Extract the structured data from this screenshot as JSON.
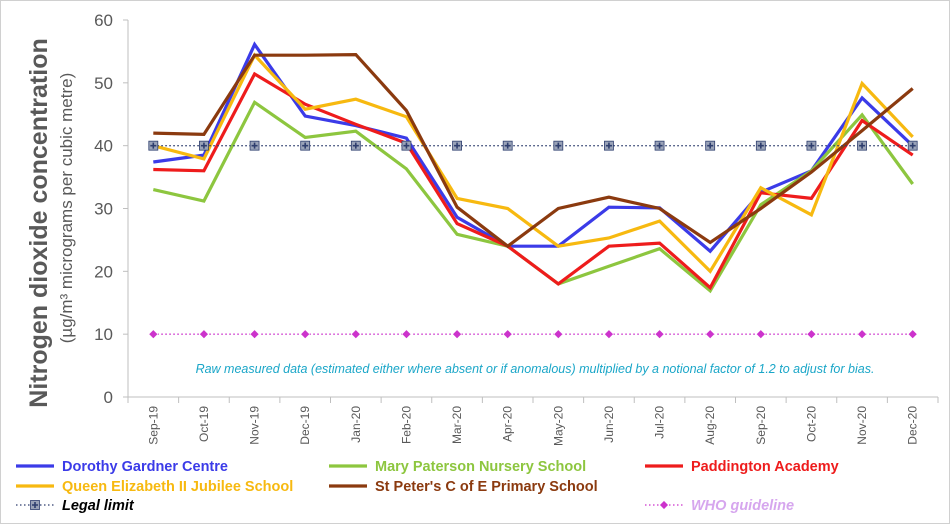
{
  "chart_data": {
    "type": "line",
    "ylabel_main": "Nitrogen dioxide concentration",
    "ylabel_sub": "(µg/m³ micrograms per cubic metre)",
    "ylim": [
      0,
      60
    ],
    "yticks": [
      0,
      10,
      20,
      30,
      40,
      50,
      60
    ],
    "categories": [
      "Sep-19",
      "Oct-19",
      "Nov-19",
      "Dec-19",
      "Jan-20",
      "Feb-20",
      "Mar-20",
      "Apr-20",
      "May-20",
      "Jun-20",
      "Jul-20",
      "Aug-20",
      "Sep-20",
      "Oct-20",
      "Nov-20",
      "Dec-20"
    ],
    "annotation": "Raw measured data (estimated either where absent or if anomalous) multiplied by a notional factor of 1.2 to adjust for bias.",
    "grid": "none",
    "legend_position": "bottom",
    "series": [
      {
        "name": "Dorothy Gardner Centre",
        "color": "#3b3be8",
        "style": "solid",
        "values": [
          37.4,
          38.5,
          56.1,
          44.7,
          43.2,
          41.2,
          28.6,
          24.0,
          24.0,
          30.2,
          30.1,
          23.2,
          32.6,
          36.0,
          47.6,
          40.0
        ]
      },
      {
        "name": "Mary Paterson Nursery School",
        "color": "#8dc63f",
        "style": "solid",
        "values": [
          33.0,
          31.2,
          46.9,
          41.3,
          42.3,
          36.3,
          25.9,
          24.0,
          18.0,
          20.8,
          23.6,
          16.9,
          30.6,
          36.0,
          44.9,
          33.9
        ]
      },
      {
        "name": "Paddington Academy",
        "color": "#ee1c1c",
        "style": "solid",
        "values": [
          36.2,
          36.0,
          51.4,
          46.6,
          43.4,
          40.4,
          27.6,
          24.0,
          18.0,
          24.0,
          24.5,
          17.4,
          32.5,
          31.6,
          44.0,
          38.5
        ]
      },
      {
        "name": "Queen Elizabeth II Jubilee School",
        "color": "#f7b910",
        "style": "solid",
        "values": [
          40.0,
          37.9,
          54.4,
          45.8,
          47.4,
          44.6,
          31.6,
          30.0,
          24.0,
          25.3,
          28.0,
          20.0,
          33.3,
          29.0,
          49.9,
          41.4
        ]
      },
      {
        "name": "St Peter's C of E Primary School",
        "color": "#8b3a0f",
        "style": "solid",
        "values": [
          42.0,
          41.8,
          54.4,
          54.4,
          54.5,
          45.6,
          30.2,
          24.0,
          30.0,
          31.8,
          30.0,
          24.6,
          30.0,
          35.8,
          42.4,
          49.1
        ]
      },
      {
        "name": "Legal limit",
        "color": "#2e3e6e",
        "style": "dotted-marker",
        "values": [
          40,
          40,
          40,
          40,
          40,
          40,
          40,
          40,
          40,
          40,
          40,
          40,
          40,
          40,
          40,
          40
        ]
      },
      {
        "name": "WHO guideline",
        "color": "#cc33cc",
        "style": "dotted-marker",
        "values": [
          10,
          10,
          10,
          10,
          10,
          10,
          10,
          10,
          10,
          10,
          10,
          10,
          10,
          10,
          10,
          10
        ]
      }
    ]
  },
  "legend": {
    "items": [
      {
        "label": "Dorothy Gardner Centre",
        "color": "#3b3be8",
        "text_color": "#3b3be8",
        "kind": "line"
      },
      {
        "label": "Mary Paterson Nursery School",
        "color": "#8dc63f",
        "text_color": "#8dc63f",
        "kind": "line"
      },
      {
        "label": "Paddington Academy",
        "color": "#ee1c1c",
        "text_color": "#ee1c1c",
        "kind": "line"
      },
      {
        "label": "Queen Elizabeth II Jubilee School",
        "color": "#f7b910",
        "text_color": "#f7b910",
        "kind": "line"
      },
      {
        "label": "St Peter's C of E Primary School",
        "color": "#8b3a0f",
        "text_color": "#8b3a0f",
        "kind": "line"
      },
      {
        "label": "Legal limit",
        "color": "#2e3e6e",
        "text_color": "#000000",
        "kind": "limit"
      },
      {
        "label": "WHO guideline",
        "color": "#cc33cc",
        "text_color": "#d6a6ee",
        "kind": "who"
      }
    ]
  }
}
